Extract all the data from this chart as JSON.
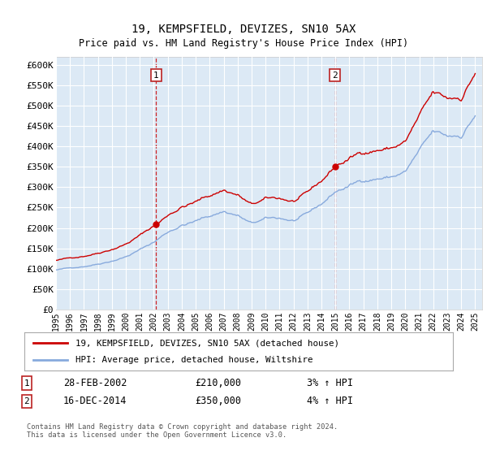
{
  "title": "19, KEMPSFIELD, DEVIZES, SN10 5AX",
  "subtitle": "Price paid vs. HM Land Registry's House Price Index (HPI)",
  "background_color": "#ffffff",
  "plot_bg_color": "#dce9f5",
  "grid_color": "#ffffff",
  "red_line_color": "#cc0000",
  "blue_line_color": "#88aadd",
  "ylim": [
    0,
    620000
  ],
  "yticks": [
    0,
    50000,
    100000,
    150000,
    200000,
    250000,
    300000,
    350000,
    400000,
    450000,
    500000,
    550000,
    600000
  ],
  "xlim_start": 1995.0,
  "xlim_end": 2025.5,
  "sale1_year": 2002.17,
  "sale1_price": 210000,
  "sale2_year": 2014.96,
  "sale2_price": 350000,
  "annotation1_label": "1",
  "annotation2_label": "2",
  "legend_label_red": "19, KEMPSFIELD, DEVIZES, SN10 5AX (detached house)",
  "legend_label_blue": "HPI: Average price, detached house, Wiltshire",
  "note1_label": "1",
  "note1_date": "28-FEB-2002",
  "note1_price": "£210,000",
  "note1_hpi": "3% ↑ HPI",
  "note2_label": "2",
  "note2_date": "16-DEC-2014",
  "note2_price": "£350,000",
  "note2_hpi": "4% ↑ HPI",
  "footer": "Contains HM Land Registry data © Crown copyright and database right 2024.\nThis data is licensed under the Open Government Licence v3.0."
}
